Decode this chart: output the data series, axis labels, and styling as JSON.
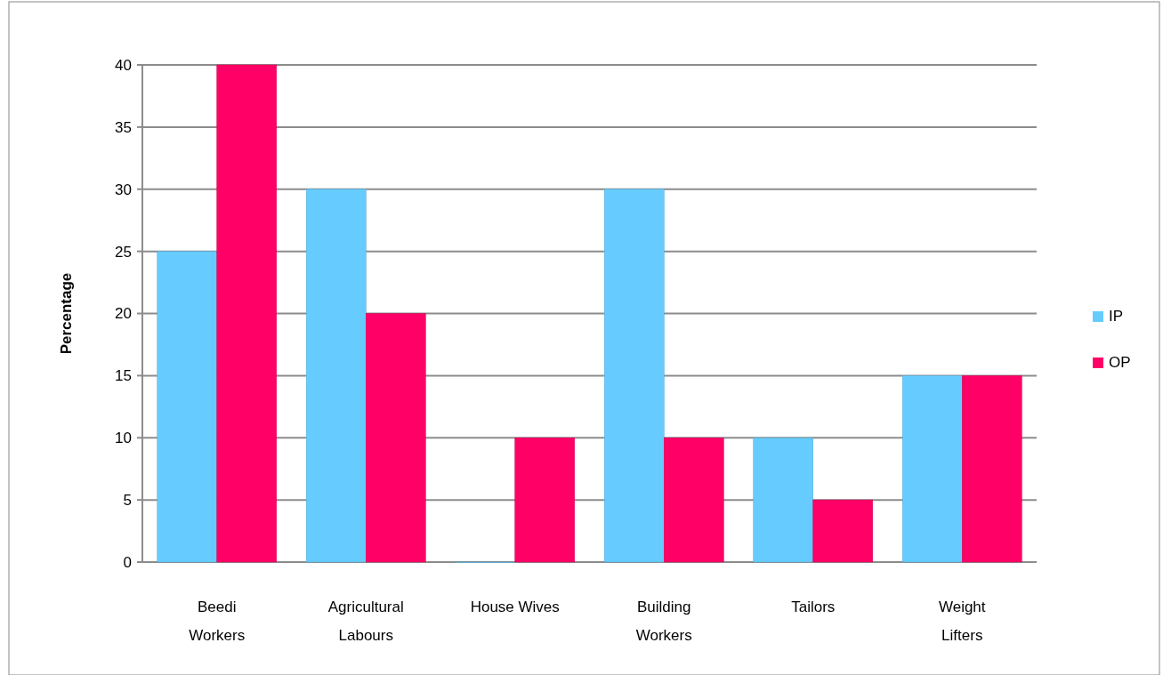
{
  "chart_data": {
    "type": "bar",
    "ylabel": "Percentage",
    "categories": [
      "Beedi Workers",
      "Agricultural Labours",
      "House Wives",
      "Building Workers",
      "Tailors",
      "Weight Lifters"
    ],
    "series": [
      {
        "name": "IP",
        "color": "#66ccff",
        "values": [
          25,
          30,
          0,
          30,
          10,
          15
        ]
      },
      {
        "name": "OP",
        "color": "#ff0066",
        "values": [
          40,
          20,
          10,
          10,
          5,
          15
        ]
      }
    ],
    "ylim": [
      0,
      40
    ],
    "yticks": [
      0,
      5,
      10,
      15,
      20,
      25,
      30,
      35,
      40
    ],
    "grid": "y",
    "legend": "right"
  }
}
